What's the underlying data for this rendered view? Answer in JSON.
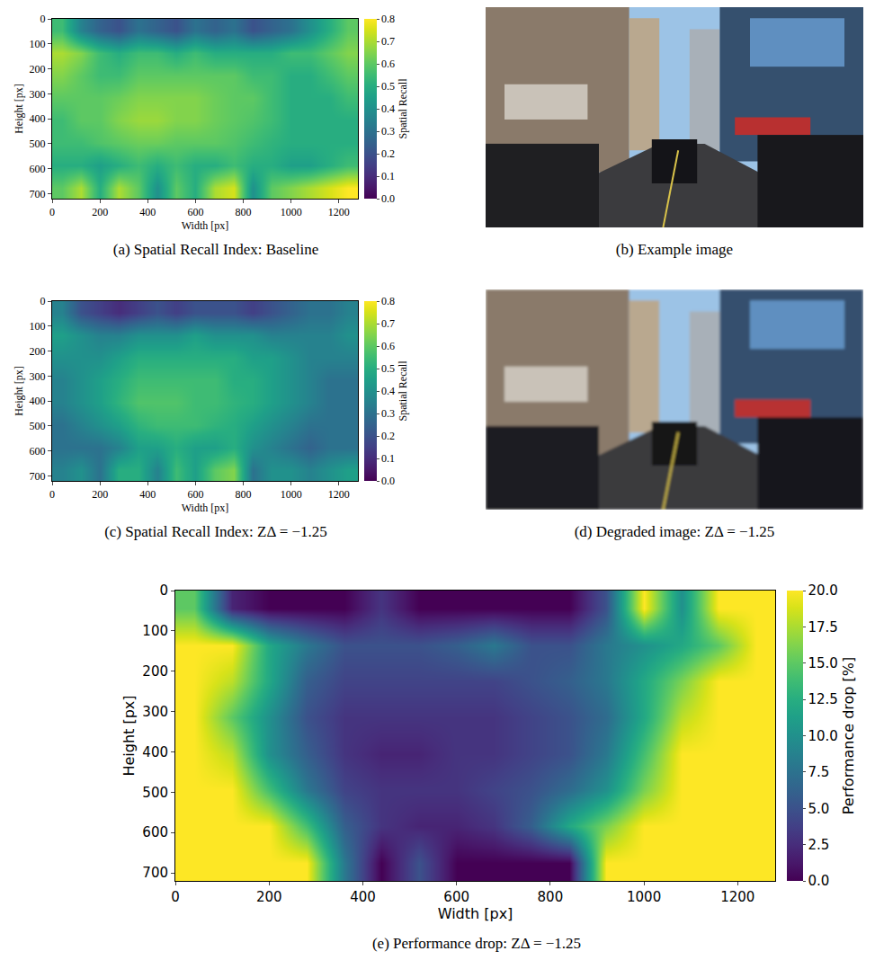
{
  "chart_data": [
    {
      "type": "heatmap",
      "title": "(a) Spatial Recall Index: Baseline",
      "x_label": "Width [px]",
      "y_label": "Height [px]",
      "x": [
        40,
        120,
        200,
        280,
        360,
        440,
        520,
        600,
        680,
        760,
        840,
        920,
        1000,
        1080,
        1160,
        1240
      ],
      "y": [
        45,
        135,
        225,
        315,
        405,
        495,
        585,
        675
      ],
      "z": [
        [
          0.55,
          0.35,
          0.25,
          0.2,
          0.3,
          0.25,
          0.2,
          0.3,
          0.25,
          0.3,
          0.2,
          0.25,
          0.3,
          0.4,
          0.5,
          0.6
        ],
        [
          0.7,
          0.65,
          0.55,
          0.5,
          0.55,
          0.55,
          0.5,
          0.55,
          0.5,
          0.5,
          0.5,
          0.5,
          0.55,
          0.55,
          0.6,
          0.65
        ],
        [
          0.65,
          0.6,
          0.55,
          0.55,
          0.6,
          0.6,
          0.6,
          0.6,
          0.6,
          0.6,
          0.55,
          0.55,
          0.5,
          0.5,
          0.55,
          0.6
        ],
        [
          0.6,
          0.6,
          0.6,
          0.62,
          0.65,
          0.65,
          0.65,
          0.65,
          0.62,
          0.6,
          0.6,
          0.55,
          0.5,
          0.5,
          0.5,
          0.55
        ],
        [
          0.55,
          0.6,
          0.6,
          0.65,
          0.68,
          0.68,
          0.65,
          0.65,
          0.62,
          0.6,
          0.58,
          0.55,
          0.5,
          0.5,
          0.5,
          0.5
        ],
        [
          0.55,
          0.55,
          0.58,
          0.6,
          0.62,
          0.62,
          0.6,
          0.6,
          0.6,
          0.58,
          0.55,
          0.52,
          0.5,
          0.5,
          0.5,
          0.5
        ],
        [
          0.5,
          0.5,
          0.45,
          0.5,
          0.55,
          0.5,
          0.55,
          0.5,
          0.5,
          0.55,
          0.5,
          0.5,
          0.45,
          0.45,
          0.5,
          0.55
        ],
        [
          0.6,
          0.7,
          0.5,
          0.7,
          0.6,
          0.4,
          0.6,
          0.5,
          0.7,
          0.75,
          0.4,
          0.6,
          0.65,
          0.7,
          0.75,
          0.8
        ]
      ],
      "xlim": [
        0,
        1280
      ],
      "ylim": [
        720,
        0
      ],
      "xticks": [
        0,
        200,
        400,
        600,
        800,
        1000,
        1200
      ],
      "yticks": [
        0,
        100,
        200,
        300,
        400,
        500,
        600,
        700
      ],
      "color": "Viridis",
      "colorbar": {
        "label": "Spatial Recall",
        "range": [
          0,
          0.8
        ],
        "ticks": [
          {
            "value": 0,
            "label": "0.0"
          },
          0.1,
          0.2,
          0.3,
          0.4,
          0.5,
          0.6,
          0.7,
          0.8
        ]
      }
    },
    {
      "type": "heatmap",
      "title": "(c) Spatial Recall Index: ZΔ = −1.25",
      "x_label": "Width [px]",
      "y_label": "Height [px]",
      "x": [
        40,
        120,
        200,
        280,
        360,
        440,
        520,
        600,
        680,
        760,
        840,
        920,
        1000,
        1080,
        1160,
        1240
      ],
      "y": [
        45,
        135,
        225,
        315,
        405,
        495,
        585,
        675
      ],
      "z": [
        [
          0.35,
          0.2,
          0.15,
          0.1,
          0.15,
          0.2,
          0.15,
          0.2,
          0.2,
          0.2,
          0.15,
          0.2,
          0.25,
          0.3,
          0.3,
          0.35
        ],
        [
          0.45,
          0.4,
          0.35,
          0.35,
          0.4,
          0.4,
          0.4,
          0.45,
          0.4,
          0.4,
          0.4,
          0.35,
          0.35,
          0.35,
          0.35,
          0.4
        ],
        [
          0.4,
          0.4,
          0.4,
          0.45,
          0.5,
          0.5,
          0.5,
          0.5,
          0.5,
          0.5,
          0.45,
          0.45,
          0.4,
          0.35,
          0.35,
          0.35
        ],
        [
          0.35,
          0.4,
          0.45,
          0.5,
          0.55,
          0.55,
          0.55,
          0.55,
          0.55,
          0.5,
          0.5,
          0.45,
          0.4,
          0.35,
          0.3,
          0.3
        ],
        [
          0.35,
          0.4,
          0.45,
          0.52,
          0.58,
          0.58,
          0.58,
          0.55,
          0.55,
          0.52,
          0.5,
          0.45,
          0.4,
          0.35,
          0.3,
          0.3
        ],
        [
          0.3,
          0.35,
          0.4,
          0.45,
          0.52,
          0.55,
          0.55,
          0.55,
          0.52,
          0.5,
          0.45,
          0.4,
          0.35,
          0.3,
          0.3,
          0.3
        ],
        [
          0.3,
          0.3,
          0.3,
          0.35,
          0.45,
          0.45,
          0.5,
          0.45,
          0.45,
          0.5,
          0.4,
          0.35,
          0.3,
          0.25,
          0.3,
          0.3
        ],
        [
          0.35,
          0.4,
          0.3,
          0.5,
          0.5,
          0.35,
          0.55,
          0.45,
          0.6,
          0.65,
          0.3,
          0.4,
          0.4,
          0.35,
          0.4,
          0.45
        ]
      ],
      "xlim": [
        0,
        1280
      ],
      "ylim": [
        720,
        0
      ],
      "xticks": [
        0,
        200,
        400,
        600,
        800,
        1000,
        1200
      ],
      "yticks": [
        0,
        100,
        200,
        300,
        400,
        500,
        600,
        700
      ],
      "color": "Viridis",
      "colorbar": {
        "label": "Spatial Recall",
        "range": [
          0,
          0.8
        ],
        "ticks": [
          {
            "value": 0,
            "label": "0.0"
          },
          0.1,
          0.2,
          0.3,
          0.4,
          0.5,
          0.6,
          0.7,
          0.8
        ]
      }
    },
    {
      "type": "heatmap",
      "title": "(e) Performance drop: ZΔ = −1.25",
      "x_label": "Width [px]",
      "y_label": "Height [px]",
      "x": [
        40,
        120,
        200,
        280,
        360,
        440,
        520,
        600,
        680,
        760,
        840,
        920,
        1000,
        1080,
        1160,
        1240
      ],
      "y": [
        45,
        135,
        225,
        315,
        405,
        495,
        585,
        675
      ],
      "z": [
        [
          15,
          2,
          0,
          0,
          0,
          3,
          0,
          0,
          0,
          0,
          0,
          5,
          20,
          10,
          20,
          20
        ],
        [
          20,
          20,
          12,
          8,
          5,
          5,
          5,
          6,
          8,
          5,
          5,
          8,
          10,
          12,
          15,
          20
        ],
        [
          20,
          18,
          12,
          6,
          4,
          4,
          4,
          4,
          4,
          5,
          6,
          8,
          12,
          16,
          20,
          20
        ],
        [
          20,
          15,
          10,
          5,
          3,
          3,
          3,
          3,
          3,
          4,
          5,
          7,
          12,
          18,
          20,
          20
        ],
        [
          20,
          18,
          10,
          6,
          3,
          2,
          2,
          3,
          3,
          4,
          5,
          8,
          14,
          20,
          20,
          20
        ],
        [
          20,
          20,
          14,
          8,
          4,
          3,
          3,
          3,
          4,
          5,
          7,
          10,
          16,
          20,
          20,
          20
        ],
        [
          20,
          20,
          20,
          14,
          6,
          3,
          2,
          2,
          3,
          6,
          12,
          16,
          20,
          20,
          20,
          20
        ],
        [
          20,
          20,
          20,
          20,
          8,
          0,
          5,
          0,
          0,
          0,
          0,
          20,
          20,
          20,
          20,
          20
        ]
      ],
      "xlim": [
        0,
        1280
      ],
      "ylim": [
        720,
        0
      ],
      "xticks": [
        0,
        200,
        400,
        600,
        800,
        1000,
        1200
      ],
      "yticks": [
        0,
        100,
        200,
        300,
        400,
        500,
        600,
        700
      ],
      "color": "Viridis",
      "colorbar": {
        "label": "Performance drop [%]",
        "range": [
          0,
          20
        ],
        "ticks": [
          {
            "value": 0,
            "label": "0.0"
          },
          2.5,
          {
            "value": 5,
            "label": "5.0"
          },
          7.5,
          {
            "value": 10,
            "label": "10.0"
          },
          12.5,
          {
            "value": 15,
            "label": "15.0"
          },
          17.5,
          {
            "value": 20,
            "label": "20.0"
          }
        ]
      }
    }
  ],
  "images": [
    {
      "caption": "(b) Example image"
    },
    {
      "caption": "(d) Degraded image: ZΔ = −1.25"
    }
  ]
}
